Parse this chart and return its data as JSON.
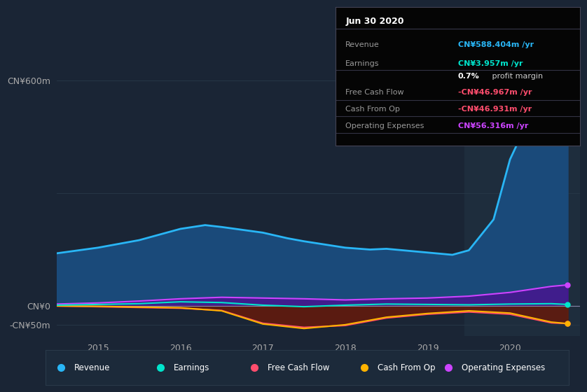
{
  "bg_color": "#1a2535",
  "plot_bg": "#1a2535",
  "shaded_bg": "#1e2d3d",
  "ylim": [
    -80,
    650
  ],
  "xlim": [
    2014.5,
    2020.85
  ],
  "y_ticks": [
    600,
    0,
    -50
  ],
  "y_tick_labels": [
    "CN¥600m",
    "CN¥0",
    "-CN¥50m"
  ],
  "x_ticks": [
    2015,
    2016,
    2017,
    2018,
    2019,
    2020
  ],
  "revenue_x": [
    2014.5,
    2015.0,
    2015.5,
    2016.0,
    2016.3,
    2016.5,
    2017.0,
    2017.3,
    2017.5,
    2018.0,
    2018.3,
    2018.5,
    2019.0,
    2019.3,
    2019.5,
    2019.8,
    2020.0,
    2020.3,
    2020.55,
    2020.7
  ],
  "revenue_y": [
    140,
    155,
    175,
    205,
    215,
    210,
    195,
    180,
    172,
    155,
    150,
    152,
    142,
    136,
    148,
    230,
    390,
    530,
    590,
    610
  ],
  "earnings_x": [
    2014.5,
    2015.0,
    2015.5,
    2016.0,
    2016.5,
    2017.0,
    2017.5,
    2018.0,
    2018.5,
    2019.0,
    2019.5,
    2020.0,
    2020.5,
    2020.7
  ],
  "earnings_y": [
    2,
    4,
    6,
    11,
    9,
    2,
    -2,
    2,
    5,
    4,
    3,
    5,
    6,
    4
  ],
  "fcf_x": [
    2014.5,
    2015.0,
    2015.5,
    2016.0,
    2016.5,
    2017.0,
    2017.5,
    2018.0,
    2018.5,
    2019.0,
    2019.5,
    2020.0,
    2020.5,
    2020.7
  ],
  "fcf_y": [
    0,
    -2,
    -4,
    -6,
    -12,
    -46,
    -57,
    -52,
    -32,
    -22,
    -16,
    -22,
    -45,
    -47
  ],
  "cashfromop_x": [
    2014.5,
    2015.0,
    2015.5,
    2016.0,
    2016.5,
    2017.0,
    2017.5,
    2018.0,
    2018.5,
    2019.0,
    2019.5,
    2020.0,
    2020.5,
    2020.7
  ],
  "cashfromop_y": [
    0,
    -1,
    -3,
    -5,
    -13,
    -48,
    -60,
    -50,
    -30,
    -20,
    -13,
    -19,
    -43,
    -47
  ],
  "opex_x": [
    2014.5,
    2015.0,
    2015.5,
    2016.0,
    2016.5,
    2017.0,
    2017.5,
    2018.0,
    2018.5,
    2019.0,
    2019.5,
    2020.0,
    2020.5,
    2020.7
  ],
  "opex_y": [
    5,
    8,
    13,
    19,
    23,
    21,
    19,
    16,
    19,
    21,
    26,
    36,
    52,
    56
  ],
  "revenue_color": "#29b6f6",
  "revenue_fill": "#1a4a7a",
  "earnings_color": "#00e5cc",
  "fcf_color": "#ff4d6d",
  "cashfromop_color": "#ffb300",
  "opex_color": "#cc44ff",
  "shaded_region_start": 2019.45,
  "grid_color": "#253545",
  "zero_line_color": "#8888aa",
  "info_box": {
    "title": "Jun 30 2020",
    "rows": [
      {
        "label": "Revenue",
        "value": "CN¥588.404m /yr",
        "value_color": "#29b6f6",
        "bold_part": null
      },
      {
        "label": "Earnings",
        "value": "CN¥3.957m /yr",
        "value_color": "#00e5cc",
        "bold_part": null
      },
      {
        "label": "",
        "value": " profit margin",
        "value_color": "#cccccc",
        "bold_part": "0.7%"
      },
      {
        "label": "Free Cash Flow",
        "value": "-CN¥46.967m /yr",
        "value_color": "#ff4d6d",
        "bold_part": null
      },
      {
        "label": "Cash From Op",
        "value": "-CN¥46.931m /yr",
        "value_color": "#ff4d6d",
        "bold_part": null
      },
      {
        "label": "Operating Expenses",
        "value": "CN¥56.316m /yr",
        "value_color": "#cc44ff",
        "bold_part": null
      }
    ]
  },
  "legend_items": [
    {
      "label": "Revenue",
      "color": "#29b6f6"
    },
    {
      "label": "Earnings",
      "color": "#00e5cc"
    },
    {
      "label": "Free Cash Flow",
      "color": "#ff4d6d"
    },
    {
      "label": "Cash From Op",
      "color": "#ffb300"
    },
    {
      "label": "Operating Expenses",
      "color": "#cc44ff"
    }
  ]
}
